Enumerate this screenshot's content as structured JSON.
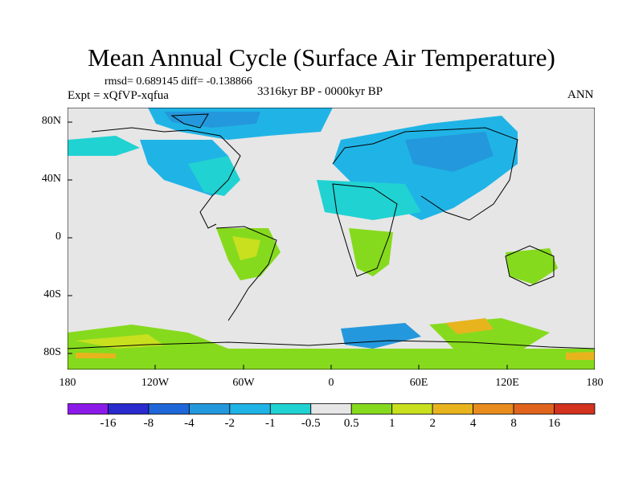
{
  "title": "Mean Annual Cycle (Surface Air Temperature)",
  "stats": "rmsd= 0.689145 diff= -0.138866",
  "experiment": "Expt = xQfVP-xqfua",
  "period": "3316kyr BP - 0000kyr BP",
  "season": "ANN",
  "lat_labels": [
    "80N",
    "40N",
    "0",
    "40S",
    "80S"
  ],
  "lon_labels": [
    "180",
    "120W",
    "60W",
    "0",
    "60E",
    "120E",
    "180"
  ],
  "colorbar": {
    "labels": [
      "-16",
      "-8",
      "-4",
      "-2",
      "-1",
      "-0.5",
      "0.5",
      "1",
      "2",
      "4",
      "8",
      "16"
    ],
    "colors": [
      "#8b1ae8",
      "#2a2acf",
      "#1f66d8",
      "#2498dc",
      "#20b4e6",
      "#21d2d2",
      "#e6e6e6",
      "#86da1e",
      "#c8e01e",
      "#e8b41e",
      "#e88c1e",
      "#e0641e",
      "#d2321e"
    ]
  }
}
